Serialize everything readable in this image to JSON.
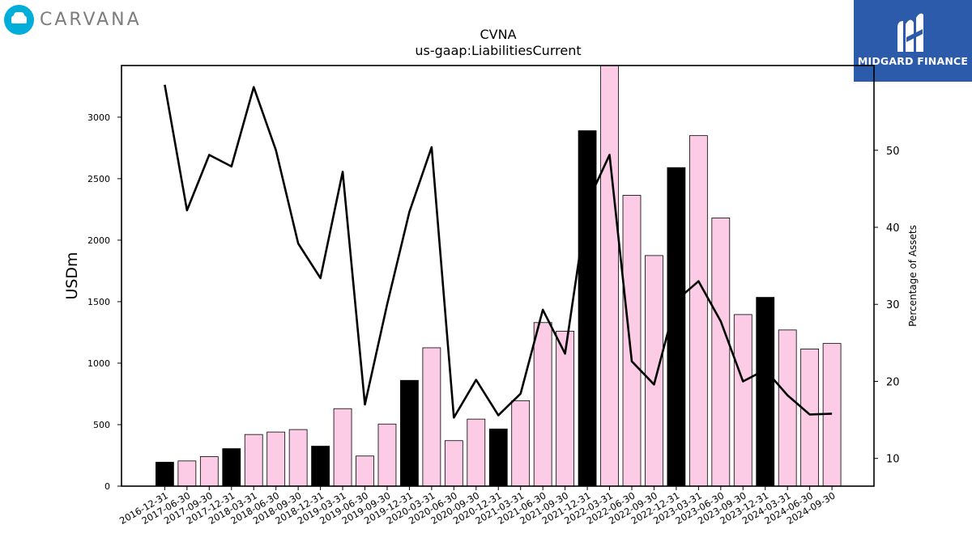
{
  "brand": {
    "left_name": "CARVANA",
    "left_icon": "carvana-car-icon",
    "right_name": "MIDGARD FINANCE",
    "right_icon": "midgard-logo-icon",
    "right_color": "#2d5bab",
    "left_color": "#00aed9"
  },
  "chart_data": {
    "type": "bar",
    "title": "CVNA",
    "subtitle": "us-gaap:LiabilitiesCurrent",
    "ylabel": "USDm",
    "y2label": "Percentage of Assets",
    "ylim": [
      0,
      3420
    ],
    "y2lim": [
      6.4,
      61.0
    ],
    "yticks": [
      0,
      500,
      1000,
      1500,
      2000,
      2500,
      3000
    ],
    "y2ticks": [
      10,
      20,
      30,
      40,
      50
    ],
    "categories": [
      "2016-12-31",
      "2017-06-30",
      "2017-09-30",
      "2017-12-31",
      "2018-03-31",
      "2018-06-30",
      "2018-09-30",
      "2018-12-31",
      "2019-03-31",
      "2019-06-30",
      "2019-09-30",
      "2019-12-31",
      "2020-03-31",
      "2020-06-30",
      "2020-09-30",
      "2020-12-31",
      "2021-03-31",
      "2021-06-30",
      "2021-09-30",
      "2021-12-31",
      "2022-03-31",
      "2022-06-30",
      "2022-09-30",
      "2022-12-31",
      "2023-03-31",
      "2023-06-30",
      "2023-09-30",
      "2023-12-31",
      "2024-03-31",
      "2024-06-30",
      "2024-09-30"
    ],
    "series": [
      {
        "type": "bar",
        "values": [
          195,
          205,
          240,
          305,
          420,
          440,
          460,
          325,
          630,
          245,
          505,
          860,
          1125,
          370,
          545,
          465,
          695,
          1330,
          1260,
          2890,
          3420,
          2365,
          1875,
          2590,
          2850,
          2180,
          1395,
          1535,
          1270,
          1115,
          1160
        ],
        "year_end": [
          true,
          false,
          false,
          true,
          false,
          false,
          false,
          true,
          false,
          false,
          false,
          true,
          false,
          false,
          false,
          true,
          false,
          false,
          false,
          true,
          false,
          false,
          false,
          true,
          false,
          false,
          false,
          true,
          false,
          false,
          false
        ],
        "colors": {
          "year_end": "#000000",
          "quarter": "#fccbe6"
        }
      },
      {
        "type": "line",
        "axis": "right",
        "color": "#000000",
        "values": [
          58.5,
          42.2,
          49.4,
          47.9,
          58.2,
          50.0,
          37.9,
          33.4,
          47.2,
          17.0,
          30.0,
          42.0,
          50.4,
          15.3,
          20.2,
          15.6,
          18.4,
          29.3,
          23.6,
          43.2,
          49.4,
          22.6,
          19.6,
          30.5,
          33.0,
          27.8,
          20.0,
          21.5,
          18.2,
          15.7,
          15.8
        ]
      }
    ],
    "grid": false,
    "legend": "none"
  }
}
